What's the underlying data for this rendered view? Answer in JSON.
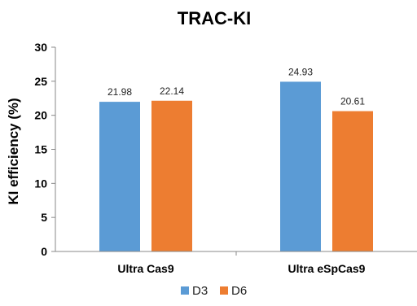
{
  "chart_data": {
    "type": "bar",
    "title": "TRAC-KI",
    "ylabel": "KI efficiency (%)",
    "xlabel": "",
    "ylim": [
      0,
      30
    ],
    "yticks": [
      0,
      5,
      10,
      15,
      20,
      25,
      30
    ],
    "categories": [
      "Ultra Cas9",
      "Ultra eSpCas9"
    ],
    "series": [
      {
        "name": "D3",
        "color": "#5B9BD5",
        "values": [
          21.98,
          24.93
        ]
      },
      {
        "name": "D6",
        "color": "#ED7D31",
        "values": [
          22.14,
          20.61
        ]
      }
    ],
    "grid": false,
    "legend": "bottom",
    "data_labels": true
  }
}
